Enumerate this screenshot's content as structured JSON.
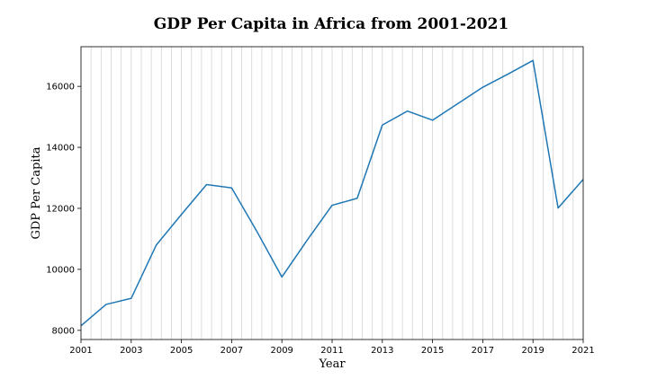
{
  "chart_data": {
    "type": "line",
    "title": "GDP Per Capita in Africa from 2001-2021",
    "xlabel": "Year",
    "ylabel": "GDP Per Capita",
    "x": [
      2001,
      2002,
      2003,
      2004,
      2005,
      2006,
      2007,
      2008,
      2009,
      2010,
      2011,
      2012,
      2013,
      2014,
      2015,
      2016,
      2017,
      2018,
      2019,
      2020,
      2021
    ],
    "series": [
      {
        "name": "",
        "color": "#1f77b4",
        "values": [
          8150,
          8850,
          9050,
          10800,
          11800,
          12780,
          12670,
          11250,
          9750,
          10950,
          12100,
          12330,
          14730,
          15190,
          14890,
          15430,
          15970,
          16400,
          16850,
          12010,
          12950
        ]
      }
    ],
    "xlim": [
      2001,
      2021
    ],
    "ylim": [
      7700,
      17300
    ],
    "xticks": [
      2001,
      2003,
      2005,
      2007,
      2009,
      2011,
      2013,
      2015,
      2017,
      2019,
      2021
    ],
    "yticks": [
      8000,
      10000,
      12000,
      14000,
      16000
    ],
    "grid": "vertical minor lines",
    "legend": "none"
  }
}
